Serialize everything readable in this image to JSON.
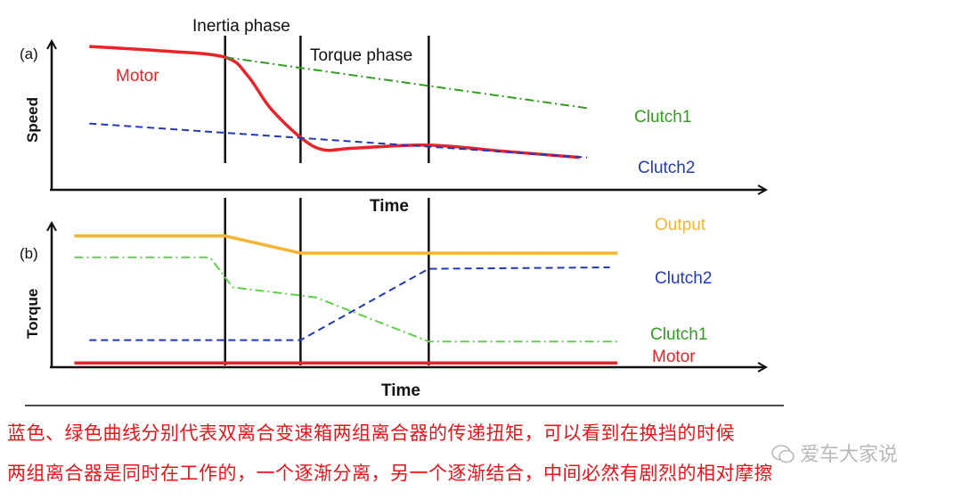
{
  "chart_data": [
    {
      "type": "line",
      "panel_label": "(a)",
      "ylabel": "Speed",
      "xlabel": "Time",
      "phase_labels": [
        "Inertia phase",
        "Torque phase"
      ],
      "phase_boundaries_x": [
        2.3,
        3.3,
        5.0
      ],
      "xlim": [
        0,
        9
      ],
      "ylim": [
        0,
        10
      ],
      "series": [
        {
          "name": "Motor",
          "color": "#e8242a",
          "style": "solid",
          "x": [
            0.5,
            1.5,
            2.3,
            2.6,
            2.9,
            3.3,
            3.6,
            4.0,
            5.0,
            6.0,
            7.0
          ],
          "y": [
            9.3,
            9.0,
            8.6,
            7.4,
            5.3,
            3.4,
            2.6,
            2.7,
            2.9,
            2.5,
            2.1
          ]
        },
        {
          "name": "Clutch1",
          "color": "#2f9e1e",
          "style": "dashdot",
          "x": [
            2.3,
            7.1
          ],
          "y": [
            8.6,
            5.3
          ]
        },
        {
          "name": "Clutch2",
          "color": "#2338b5",
          "style": "dashed",
          "x": [
            0.5,
            7.1
          ],
          "y": [
            4.3,
            2.1
          ]
        }
      ]
    },
    {
      "type": "line",
      "panel_label": "(b)",
      "ylabel": "Torque",
      "xlabel": "Time",
      "phase_boundaries_x": [
        2.3,
        3.3,
        5.0
      ],
      "xlim": [
        0,
        9
      ],
      "ylim": [
        0,
        10
      ],
      "series": [
        {
          "name": "Output",
          "color": "#f5b433",
          "style": "solid",
          "x": [
            0.3,
            2.3,
            3.3,
            7.5
          ],
          "y": [
            9.2,
            9.2,
            8.0,
            8.0
          ]
        },
        {
          "name": "Clutch2",
          "color": "#2338b5",
          "style": "dashed",
          "x": [
            0.5,
            3.3,
            5.0,
            7.4
          ],
          "y": [
            1.9,
            1.9,
            6.9,
            7.0
          ]
        },
        {
          "name": "Clutch1",
          "color": "#5fd14a",
          "style": "dashdot",
          "x": [
            0.3,
            2.1,
            2.4,
            3.5,
            5.0,
            7.5
          ],
          "y": [
            7.7,
            7.7,
            5.6,
            4.9,
            1.8,
            1.8
          ]
        },
        {
          "name": "Motor",
          "color": "#e8242a",
          "style": "solid",
          "x": [
            0.3,
            7.5
          ],
          "y": [
            0.3,
            0.3
          ]
        }
      ]
    }
  ],
  "captions": [
    "蓝色、绿色曲线分别代表双离合变速箱两组离合器的传递扭矩，可以看到在换挡的时候",
    "两组离合器是同时在工作的，一个逐渐分离，另一个逐渐结合，中间必然有剧烈的相对摩擦"
  ],
  "watermark": "爱车大家说",
  "watermark_icon": "chat-bubble-icon"
}
